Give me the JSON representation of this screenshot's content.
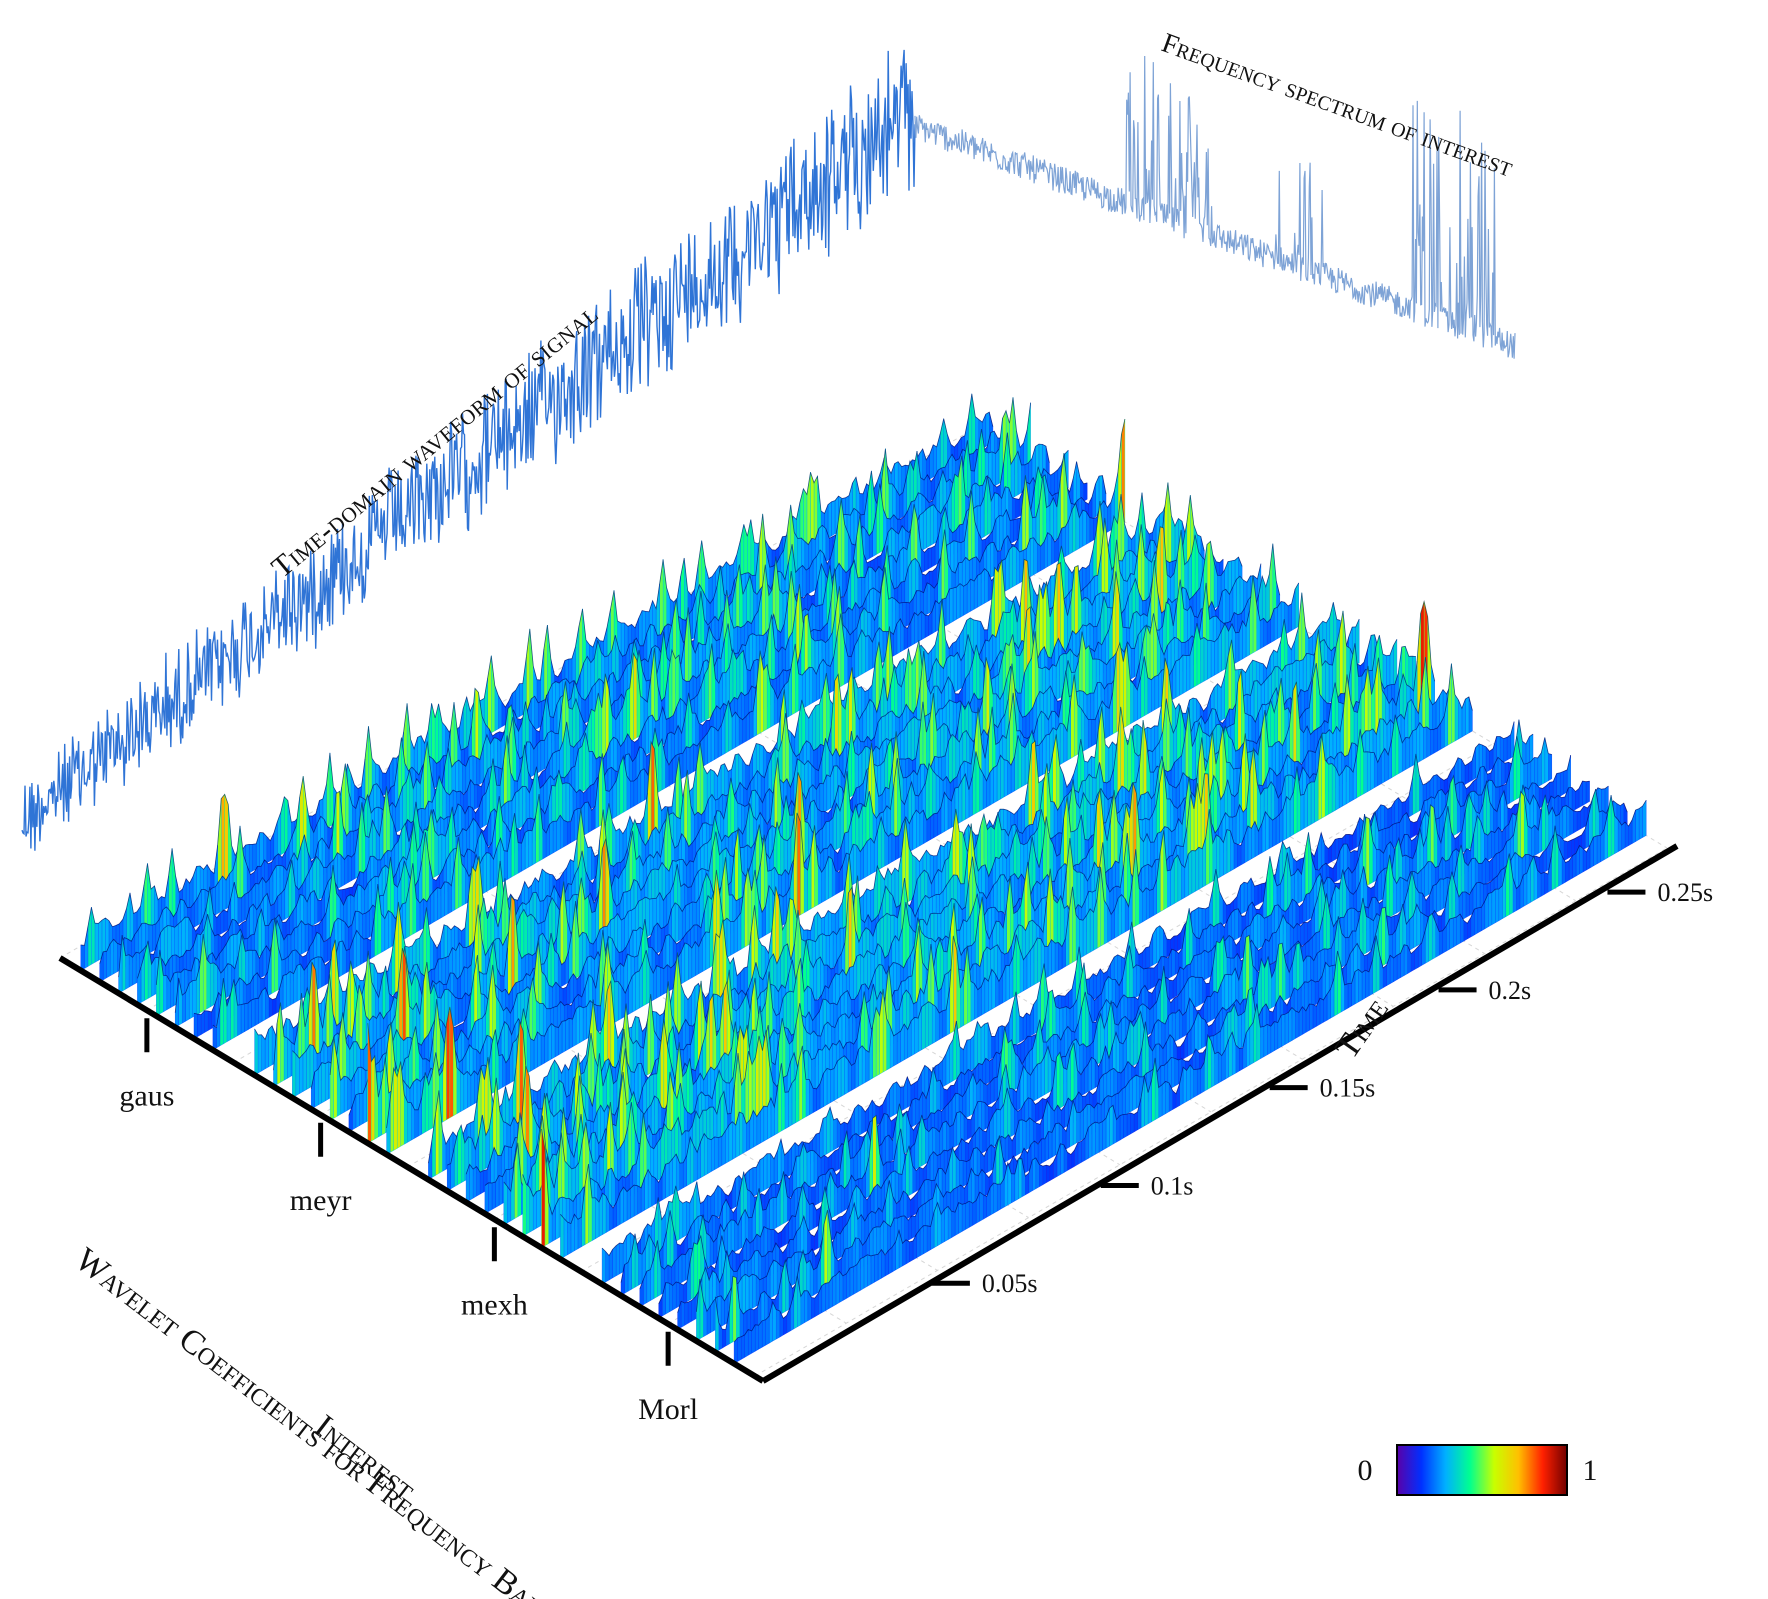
{
  "chart_data": {
    "type": "3d-surface",
    "title": "",
    "labels": {
      "time_domain": "Time-domain waveform of signal",
      "frequency_spectrum": "Frequency spectrum  of interest",
      "x_axis": "Wavelet Coefficients for Frequency Bands of",
      "x_axis_line2": "Interest",
      "y_axis": "Time"
    },
    "categories": [
      "gaus",
      "meyr",
      "mexh",
      "Morl"
    ],
    "time_ticks": [
      "0.05s",
      "0.1s",
      "0.15s",
      "0.2s",
      "0.25s"
    ],
    "time_tick_values": [
      0.05,
      0.1,
      0.15,
      0.2,
      0.25
    ],
    "time_range": [
      0,
      0.27
    ],
    "colorbar": {
      "min_label": "0",
      "max_label": "1",
      "min": 0,
      "max": 1,
      "colors": [
        "#5a00a8",
        "#0030ff",
        "#00b0ff",
        "#00ff90",
        "#c8ff00",
        "#ffc000",
        "#ff2000",
        "#700000"
      ]
    },
    "band_peak_level": [
      0.75,
      0.95,
      1.0,
      0.55
    ],
    "waveform_color": "#2f74d6",
    "spectrum_color": "#7ea3d6"
  }
}
